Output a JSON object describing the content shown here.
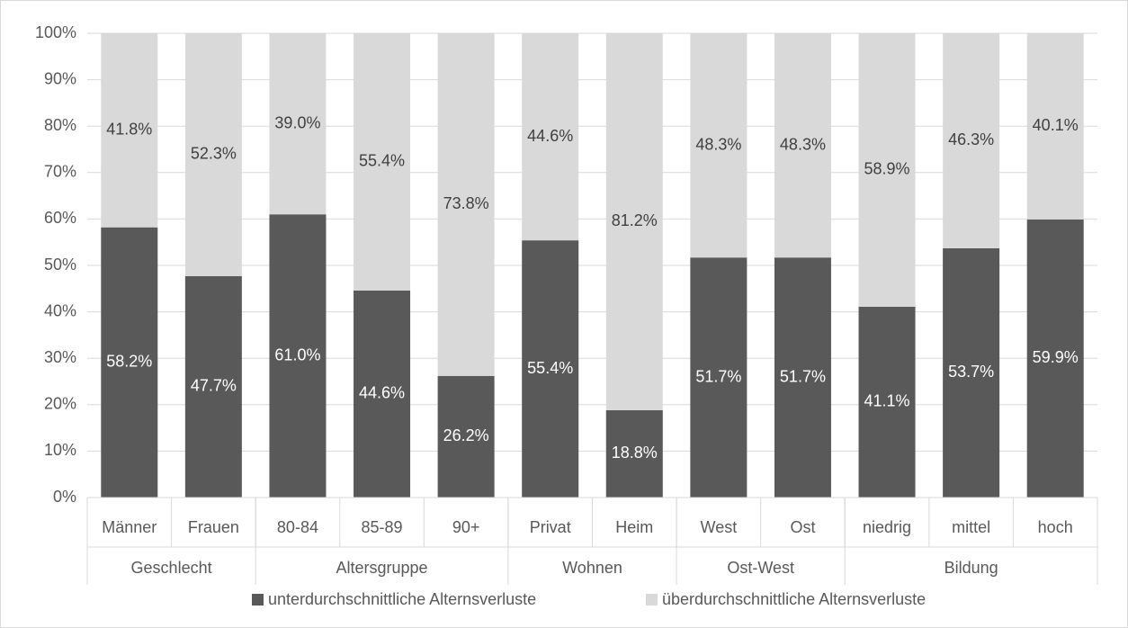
{
  "chart_data": {
    "type": "stacked_bar",
    "categories": [
      "Männer",
      "Frauen",
      "80-84",
      "85-89",
      "90+",
      "Privat",
      "Heim",
      "West",
      "Ost",
      "niedrig",
      "mittel",
      "hoch"
    ],
    "groups": [
      {
        "name": "Geschlecht",
        "span": 2
      },
      {
        "name": "Altersgruppe",
        "span": 3
      },
      {
        "name": "Wohnen",
        "span": 2
      },
      {
        "name": "Ost-West",
        "span": 2
      },
      {
        "name": "Bildung",
        "span": 3
      }
    ],
    "series": [
      {
        "name": "unterdurchschnittliche Alternsverluste",
        "color": "#595959",
        "values": [
          58.2,
          47.7,
          61.0,
          44.6,
          26.2,
          55.4,
          18.8,
          51.7,
          51.7,
          41.1,
          53.7,
          59.9
        ],
        "value_labels": [
          "58.2%",
          "47.7%",
          "61.0%",
          "44.6%",
          "26.2%",
          "55.4%",
          "18.8%",
          "51.7%",
          "51.7%",
          "41.1%",
          "53.7%",
          "59.9%"
        ]
      },
      {
        "name": "überdurchschnittliche Alternsverluste",
        "color": "#d9d9d9",
        "values": [
          41.8,
          52.3,
          39.0,
          55.4,
          73.8,
          44.6,
          81.2,
          48.3,
          48.3,
          58.9,
          46.3,
          40.1
        ],
        "value_labels": [
          "41.8%",
          "52.3%",
          "39.0%",
          "55.4%",
          "73.8%",
          "44.6%",
          "81.2%",
          "48.3%",
          "48.3%",
          "58.9%",
          "46.3%",
          "40.1%"
        ]
      }
    ],
    "ylim": [
      0,
      100
    ],
    "yticks": [
      {
        "value": 0,
        "label": "0%"
      },
      {
        "value": 10,
        "label": "10%"
      },
      {
        "value": 20,
        "label": "20%"
      },
      {
        "value": 30,
        "label": "30%"
      },
      {
        "value": 40,
        "label": "40%"
      },
      {
        "value": 50,
        "label": "50%"
      },
      {
        "value": 60,
        "label": "60%"
      },
      {
        "value": 70,
        "label": "70%"
      },
      {
        "value": 80,
        "label": "80%"
      },
      {
        "value": 90,
        "label": "90%"
      },
      {
        "value": 100,
        "label": "100%"
      }
    ],
    "grid": true,
    "legend": "bottom"
  }
}
